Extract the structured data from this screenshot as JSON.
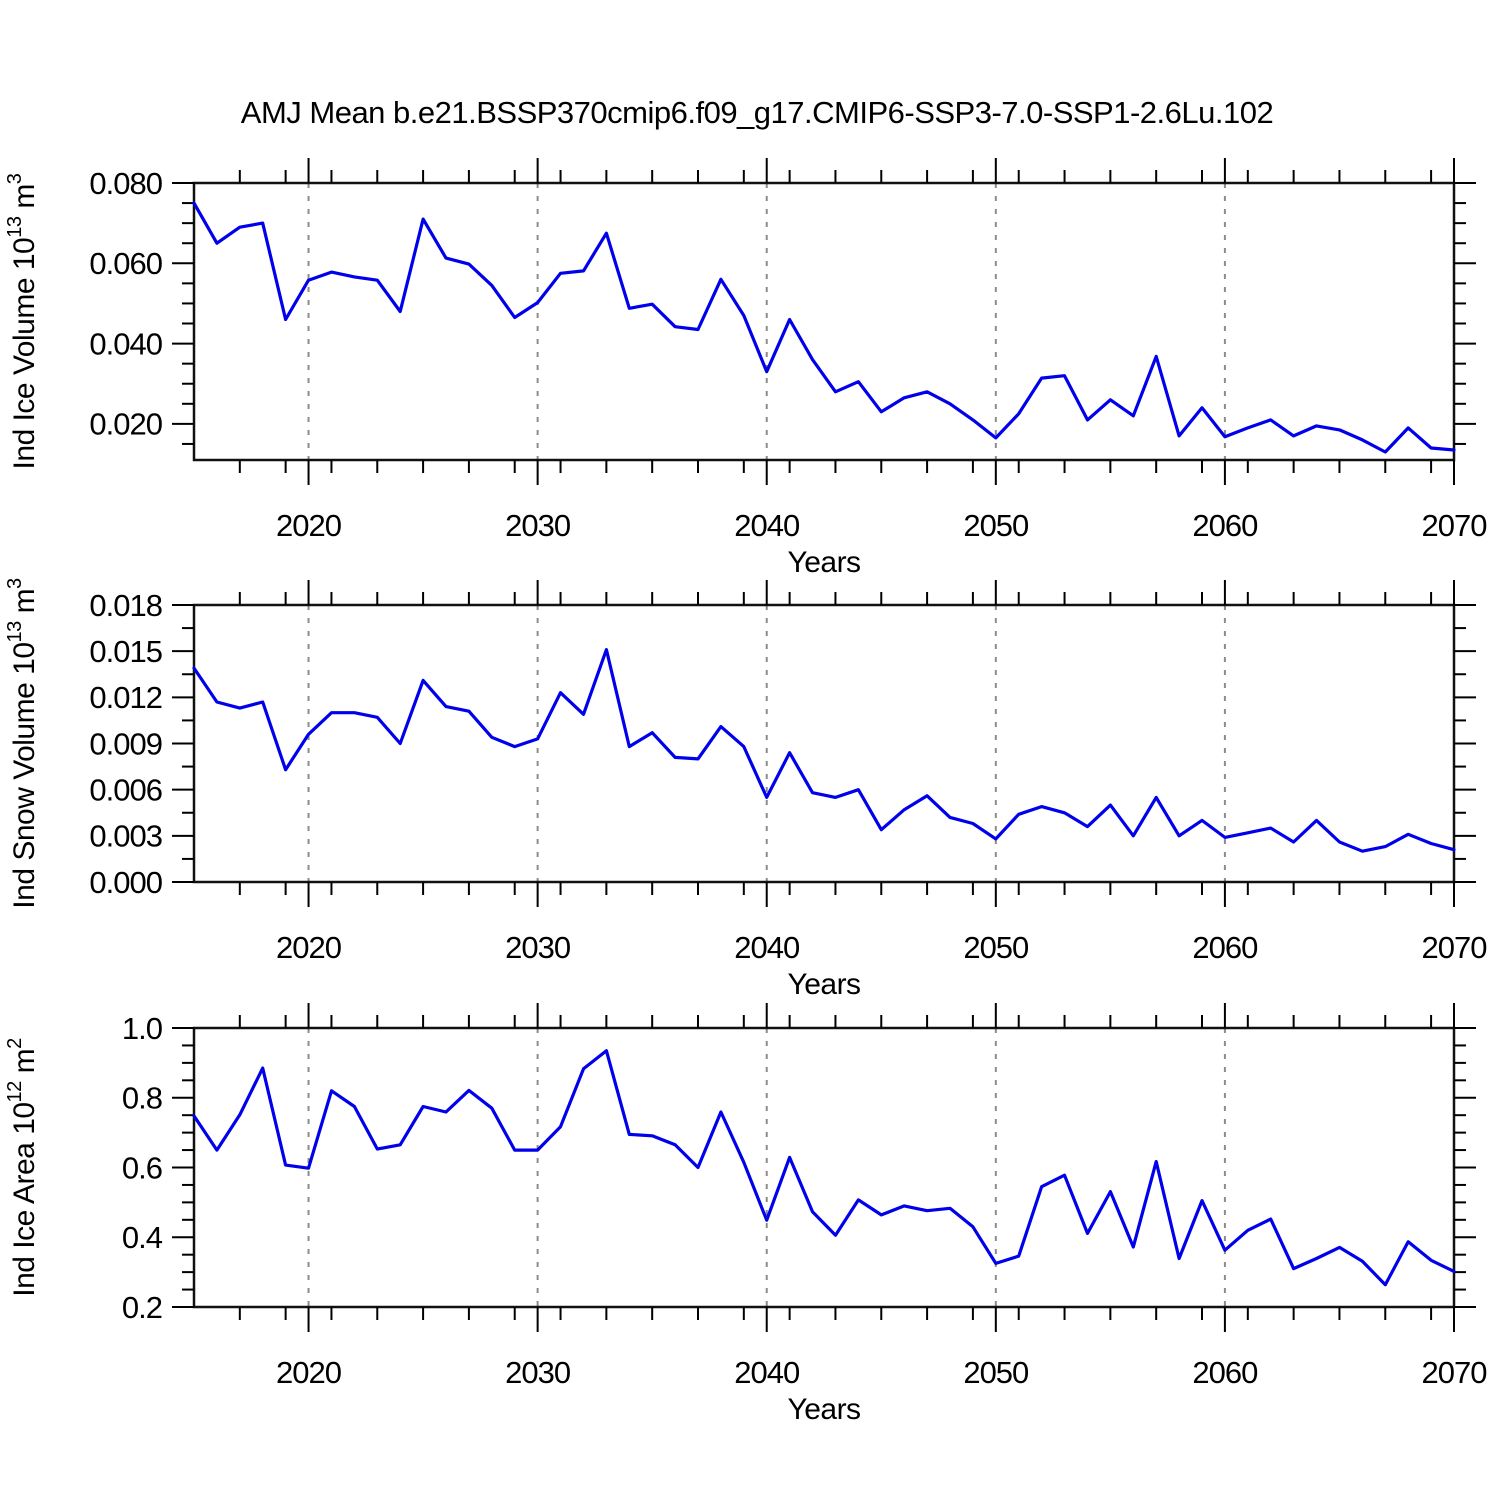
{
  "title": "AMJ Mean b.e21.BSSP370cmip6.f09_g17.CMIP6-SSP3-7.0-SSP1-2.6Lu.102",
  "colors": {
    "line": "#0000EB",
    "grid": "#8c8c8c",
    "frame": "#111111",
    "text": "#000000",
    "background": "#ffffff"
  },
  "x_axis": {
    "label": "Years",
    "start": 2015,
    "end": 2070,
    "major_ticks": [
      2020,
      2030,
      2040,
      2050,
      2060,
      2070
    ],
    "major_tick_labels": [
      "2020",
      "2030",
      "2040",
      "2050",
      "2060",
      "2070"
    ],
    "minor_step": 2,
    "grid_lines": [
      2020,
      2030,
      2040,
      2050,
      2060
    ]
  },
  "chart_data": [
    {
      "type": "line",
      "id": "ind-ice-volume",
      "ylabel_text": "Ind Ice Volume 10^13 m^3",
      "ylabel_segments": [
        {
          "kind": "text",
          "value": "Ind Ice Volume 10"
        },
        {
          "kind": "sup",
          "value": "13"
        },
        {
          "kind": "text",
          "value": " m"
        },
        {
          "kind": "sup",
          "value": "3"
        }
      ],
      "xlabel": "Years",
      "ylim": [
        0.011,
        0.08
      ],
      "yticks": [
        0.02,
        0.04,
        0.06,
        0.08
      ],
      "ytick_labels": [
        "0.020",
        "0.040",
        "0.060",
        "0.080"
      ],
      "y_minor_step": 0.005,
      "x_start": 2015,
      "values": [
        0.075,
        0.065,
        0.069,
        0.07,
        0.046,
        0.0558,
        0.0578,
        0.0566,
        0.0558,
        0.048,
        0.071,
        0.0613,
        0.0598,
        0.0545,
        0.0465,
        0.0502,
        0.0575,
        0.0581,
        0.0675,
        0.0488,
        0.0498,
        0.0442,
        0.0435,
        0.056,
        0.047,
        0.033,
        0.046,
        0.036,
        0.028,
        0.0305,
        0.023,
        0.0265,
        0.028,
        0.025,
        0.021,
        0.0165,
        0.0225,
        0.0314,
        0.032,
        0.021,
        0.026,
        0.022,
        0.0368,
        0.017,
        0.024,
        0.0168,
        0.019,
        0.021,
        0.017,
        0.0195,
        0.0185,
        0.016,
        0.013,
        0.019,
        0.014,
        0.0135
      ]
    },
    {
      "type": "line",
      "id": "ind-snow-volume",
      "ylabel_text": "Ind Snow Volume 10^13 m^3",
      "ylabel_segments": [
        {
          "kind": "text",
          "value": "Ind Snow Volume 10"
        },
        {
          "kind": "sup",
          "value": "13"
        },
        {
          "kind": "text",
          "value": " m"
        },
        {
          "kind": "sup",
          "value": "3"
        }
      ],
      "xlabel": "Years",
      "ylim": [
        0.0,
        0.018
      ],
      "yticks": [
        0.0,
        0.003,
        0.006,
        0.009,
        0.012,
        0.015,
        0.018
      ],
      "ytick_labels": [
        "0.000",
        "0.003",
        "0.006",
        "0.009",
        "0.012",
        "0.015",
        "0.018"
      ],
      "y_minor_step": 0.0015,
      "x_start": 2015,
      "values": [
        0.0139,
        0.0117,
        0.0113,
        0.0117,
        0.0073,
        0.0096,
        0.011,
        0.011,
        0.0107,
        0.009,
        0.0131,
        0.0114,
        0.0111,
        0.0094,
        0.0088,
        0.0093,
        0.0123,
        0.0109,
        0.0151,
        0.0088,
        0.0097,
        0.0081,
        0.008,
        0.0101,
        0.0088,
        0.0055,
        0.0084,
        0.0058,
        0.0055,
        0.006,
        0.0034,
        0.0047,
        0.0056,
        0.0042,
        0.0038,
        0.0028,
        0.0044,
        0.0049,
        0.0045,
        0.0036,
        0.005,
        0.003,
        0.0055,
        0.003,
        0.004,
        0.0029,
        0.0032,
        0.0035,
        0.0026,
        0.004,
        0.0026,
        0.002,
        0.0023,
        0.0031,
        0.0025,
        0.0021
      ]
    },
    {
      "type": "line",
      "id": "ind-ice-area",
      "ylabel_text": "Ind Ice Area 10^12 m^2",
      "ylabel_segments": [
        {
          "kind": "text",
          "value": "Ind Ice Area 10"
        },
        {
          "kind": "sup",
          "value": "12"
        },
        {
          "kind": "text",
          "value": " m"
        },
        {
          "kind": "sup",
          "value": "2"
        }
      ],
      "xlabel": "Years",
      "ylim": [
        0.2,
        1.0
      ],
      "yticks": [
        0.2,
        0.4,
        0.6,
        0.8,
        1.0
      ],
      "ytick_labels": [
        "0.2",
        "0.4",
        "0.6",
        "0.8",
        "1.0"
      ],
      "y_minor_step": 0.05,
      "x_start": 2015,
      "values": [
        0.748,
        0.65,
        0.751,
        0.885,
        0.607,
        0.598,
        0.82,
        0.775,
        0.653,
        0.665,
        0.775,
        0.759,
        0.821,
        0.77,
        0.65,
        0.65,
        0.717,
        0.883,
        0.935,
        0.695,
        0.691,
        0.665,
        0.6,
        0.759,
        0.615,
        0.449,
        0.629,
        0.473,
        0.406,
        0.507,
        0.464,
        0.49,
        0.476,
        0.483,
        0.43,
        0.325,
        0.346,
        0.545,
        0.578,
        0.411,
        0.531,
        0.372,
        0.617,
        0.339,
        0.505,
        0.363,
        0.42,
        0.452,
        0.31,
        0.339,
        0.371,
        0.331,
        0.264,
        0.387,
        0.334,
        0.302
      ]
    }
  ]
}
